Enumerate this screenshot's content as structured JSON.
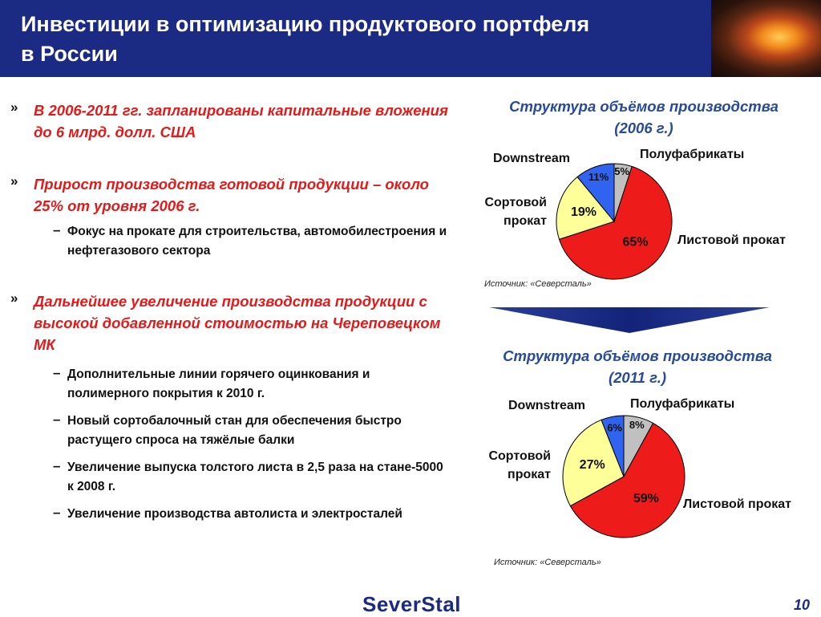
{
  "header": {
    "title": "Инвестиции в оптимизацию продуктового портфеля\nв России"
  },
  "bullets": [
    {
      "marker": "»",
      "text": "В 2006-2011 гг. запланированы капитальные вложения до 6 млрд. долл. США",
      "sub": []
    },
    {
      "marker": "»",
      "text": "Прирост производства готовой продукции – около 25% от уровня 2006 г.",
      "sub": [
        {
          "marker": "–",
          "text": "Фокус на прокате для строительства, автомобилестроения и нефтегазового сектора"
        }
      ]
    },
    {
      "marker": "»",
      "text": "Дальнейшее увеличение производства продукции с высокой добавленной стоимостью на Череповецком МК",
      "sub": [
        {
          "marker": "–",
          "text": "Дополнительные линии горячего оцинкования и полимерного покрытия к 2010 г."
        },
        {
          "marker": "–",
          "text": "Новый сортобалочный стан для обеспечения быстро растущего спроса на тяжёлые балки"
        },
        {
          "marker": "–",
          "text": "Увеличение выпуска толстого листа в 2,5 раза на стане-5000 к 2008 г."
        },
        {
          "marker": "–",
          "text": "Увеличение производства автолиста и электросталей"
        }
      ]
    }
  ],
  "chart_data": [
    {
      "type": "pie",
      "title": "Структура объёмов производства\n(2006 г.)",
      "categories": [
        "Полуфабрикаты",
        "Листовой  прокат",
        "Сортовой\nпрокат",
        "Downstream"
      ],
      "values": [
        5,
        65,
        19,
        11
      ],
      "value_labels": [
        "5%",
        "65%",
        "19%",
        "11%"
      ],
      "colors": [
        "#c0c0c0",
        "#ee1b1b",
        "#ffff99",
        "#2f63f0"
      ],
      "source": "Источник: «Северсталь»"
    },
    {
      "type": "pie",
      "title": "Структура объёмов производства\n(2011 г.)",
      "categories": [
        "Полуфабрикаты",
        "Листовой прокат",
        "Сортовой\nпрокат",
        "Downstream"
      ],
      "values": [
        8,
        59,
        27,
        6
      ],
      "value_labels": [
        "8%",
        "59%",
        "27%",
        "6%"
      ],
      "colors": [
        "#c0c0c0",
        "#ee1b1b",
        "#ffff99",
        "#2f63f0"
      ],
      "source": "Источник: «Северсталь»"
    }
  ],
  "footer": {
    "logo": "SeverStal",
    "page_number": "10"
  }
}
